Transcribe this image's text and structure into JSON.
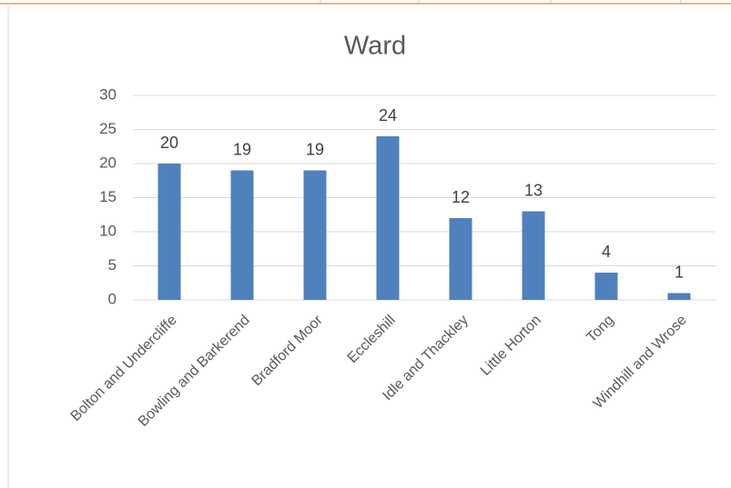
{
  "chart_data": {
    "type": "bar",
    "title": "Ward",
    "categories": [
      "Bolton and Undercliffe",
      "Bowling and Barkerend",
      "Bradford Moor",
      "Eccleshill",
      "Idle and Thackley",
      "Little Horton",
      "Tong",
      "Windhill and Wrose"
    ],
    "values": [
      20,
      19,
      19,
      24,
      12,
      13,
      4,
      1
    ],
    "color": "#4f81bd",
    "ylim": [
      0,
      30
    ],
    "yticks": [
      0,
      5,
      10,
      15,
      20,
      25,
      30
    ],
    "grid": true,
    "data_labels": true
  }
}
